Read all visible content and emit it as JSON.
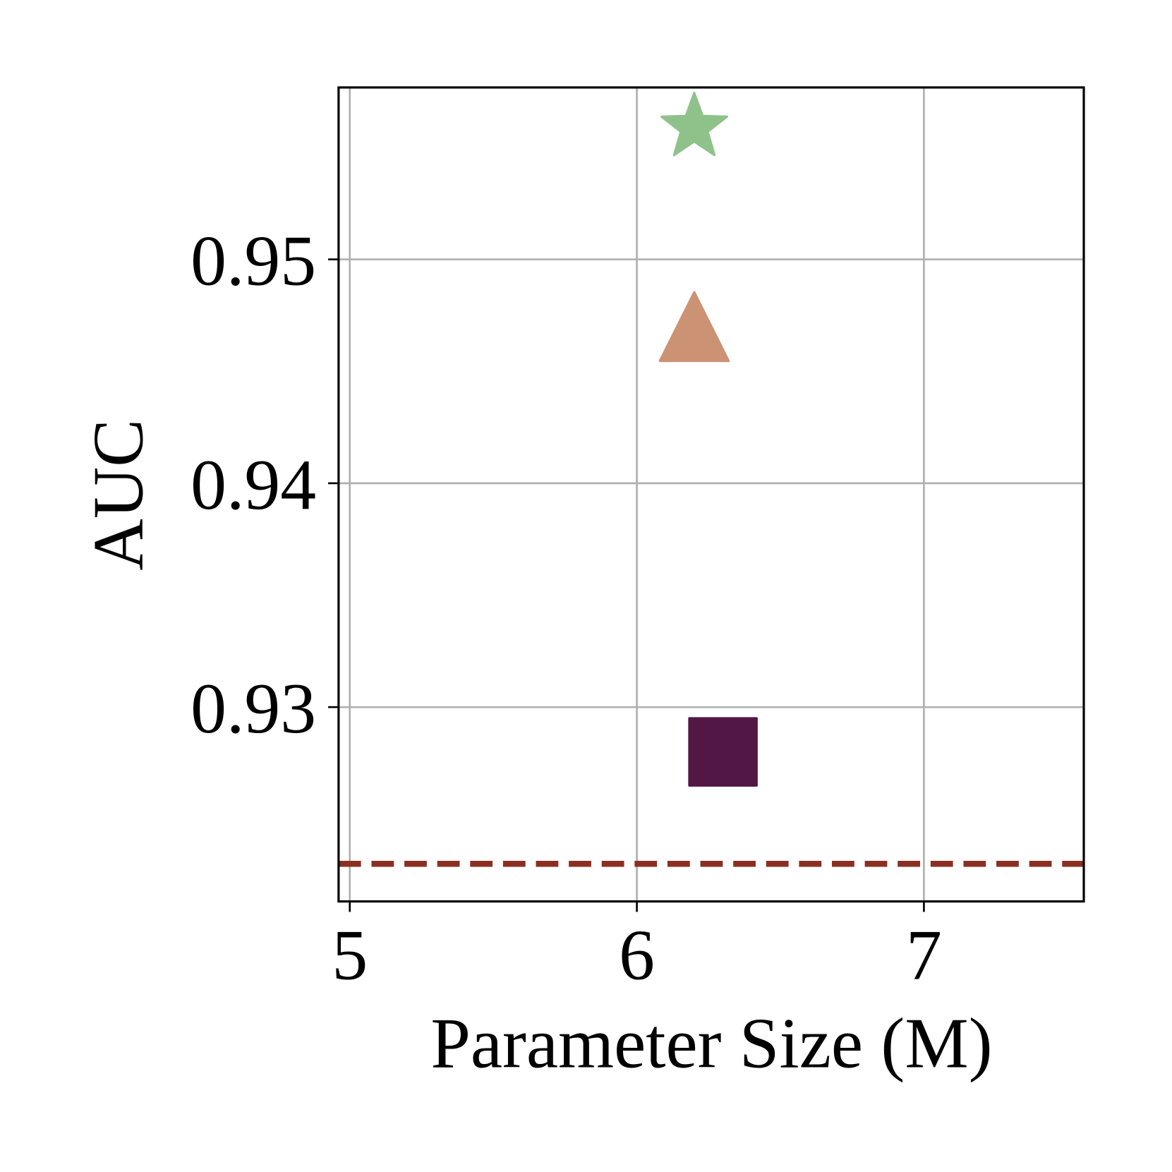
{
  "chart_data": {
    "type": "scatter",
    "xlabel": "Parameter Size (M)",
    "ylabel": "AUC",
    "xlim": [
      4.961,
      7.557
    ],
    "ylim": [
      0.92132,
      0.95768
    ],
    "xticks": [
      5,
      6,
      7
    ],
    "yticks": [
      0.93,
      0.94,
      0.95
    ],
    "grid": true,
    "series": [
      {
        "color": "#8fc28a",
        "marker": "star",
        "x": [
          6.2
        ],
        "values": [
          0.9561
        ]
      },
      {
        "color": "#cc9274",
        "marker": "triangle",
        "x": [
          6.2
        ],
        "values": [
          0.947
        ]
      },
      {
        "color": "#521745",
        "marker": "square",
        "x": [
          6.3
        ],
        "values": [
          0.928
        ]
      }
    ],
    "hline": {
      "value": 0.923,
      "color": "#8b2f22",
      "style": "dashed"
    }
  }
}
